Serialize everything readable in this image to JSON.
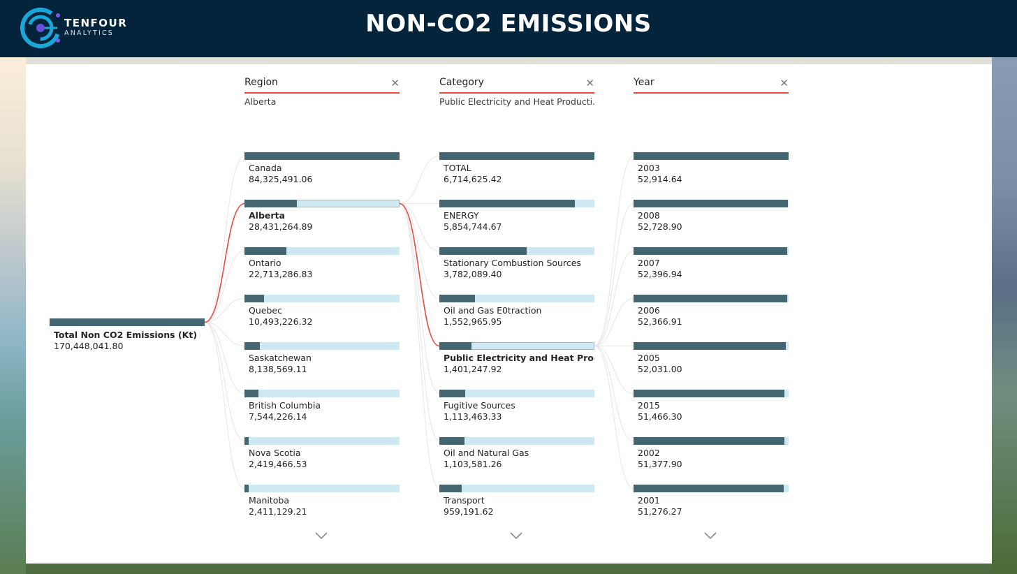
{
  "header": {
    "brand_name": "TENFOUR",
    "brand_sub": "ANALYTICS",
    "title": "NON-CO2 EMISSIONS"
  },
  "root": {
    "label": "Total Non CO2 Emissions (Kt)",
    "value": "170,448,041.80"
  },
  "columns": [
    {
      "header": "Region",
      "filter": "Alberta",
      "nodes": [
        {
          "label": "Canada",
          "value": "84,325,491.06",
          "fill": 1.0,
          "selected": false
        },
        {
          "label": "Alberta",
          "value": "28,431,264.89",
          "fill": 0.337,
          "selected": true
        },
        {
          "label": "Ontario",
          "value": "22,713,286.83",
          "fill": 0.269,
          "selected": false
        },
        {
          "label": "Quebec",
          "value": "10,493,226.32",
          "fill": 0.124,
          "selected": false
        },
        {
          "label": "Saskatchewan",
          "value": "8,138,569.11",
          "fill": 0.097,
          "selected": false
        },
        {
          "label": "British Columbia",
          "value": "7,544,226.14",
          "fill": 0.089,
          "selected": false
        },
        {
          "label": "Nova Scotia",
          "value": "2,419,466.53",
          "fill": 0.029,
          "selected": false
        },
        {
          "label": "Manitoba",
          "value": "2,411,129.21",
          "fill": 0.029,
          "selected": false
        }
      ]
    },
    {
      "header": "Category",
      "filter": "Public Electricity and Heat Producti...",
      "nodes": [
        {
          "label": "TOTAL",
          "value": "6,714,625.42",
          "fill": 1.0,
          "selected": false
        },
        {
          "label": "ENERGY",
          "value": "5,854,744.67",
          "fill": 0.872,
          "selected": false
        },
        {
          "label": "Stationary Combustion Sources",
          "value": "3,782,089.40",
          "fill": 0.563,
          "selected": false
        },
        {
          "label": "Oil and Gas E0traction",
          "value": "1,552,965.95",
          "fill": 0.231,
          "selected": false
        },
        {
          "label": "Public Electricity and Heat Prod...",
          "value": "1,401,247.92",
          "fill": 0.209,
          "selected": true
        },
        {
          "label": "Fugitive Sources",
          "value": "1,113,463.33",
          "fill": 0.166,
          "selected": false
        },
        {
          "label": "Oil and Natural Gas",
          "value": "1,103,581.26",
          "fill": 0.164,
          "selected": false
        },
        {
          "label": "Transport",
          "value": "959,191.62",
          "fill": 0.143,
          "selected": false
        }
      ]
    },
    {
      "header": "Year",
      "filter": "",
      "nodes": [
        {
          "label": "2003",
          "value": "52,914.64",
          "fill": 1.0,
          "selected": false
        },
        {
          "label": "2008",
          "value": "52,728.90",
          "fill": 0.996,
          "selected": false
        },
        {
          "label": "2007",
          "value": "52,396.94",
          "fill": 0.99,
          "selected": false
        },
        {
          "label": "2006",
          "value": "52,366.91",
          "fill": 0.99,
          "selected": false
        },
        {
          "label": "2005",
          "value": "52,031.00",
          "fill": 0.983,
          "selected": false
        },
        {
          "label": "2015",
          "value": "51,466.30",
          "fill": 0.973,
          "selected": false
        },
        {
          "label": "2002",
          "value": "51,377.90",
          "fill": 0.971,
          "selected": false
        },
        {
          "label": "2001",
          "value": "51,276.27",
          "fill": 0.969,
          "selected": false
        }
      ]
    }
  ],
  "colors": {
    "header_bg": "#03243a",
    "bar_fill": "#456671",
    "bar_track": "#cfe9f4",
    "accent": "#e8493b"
  },
  "icons": {
    "close": "close-icon",
    "expand": "chevron-down-icon"
  }
}
